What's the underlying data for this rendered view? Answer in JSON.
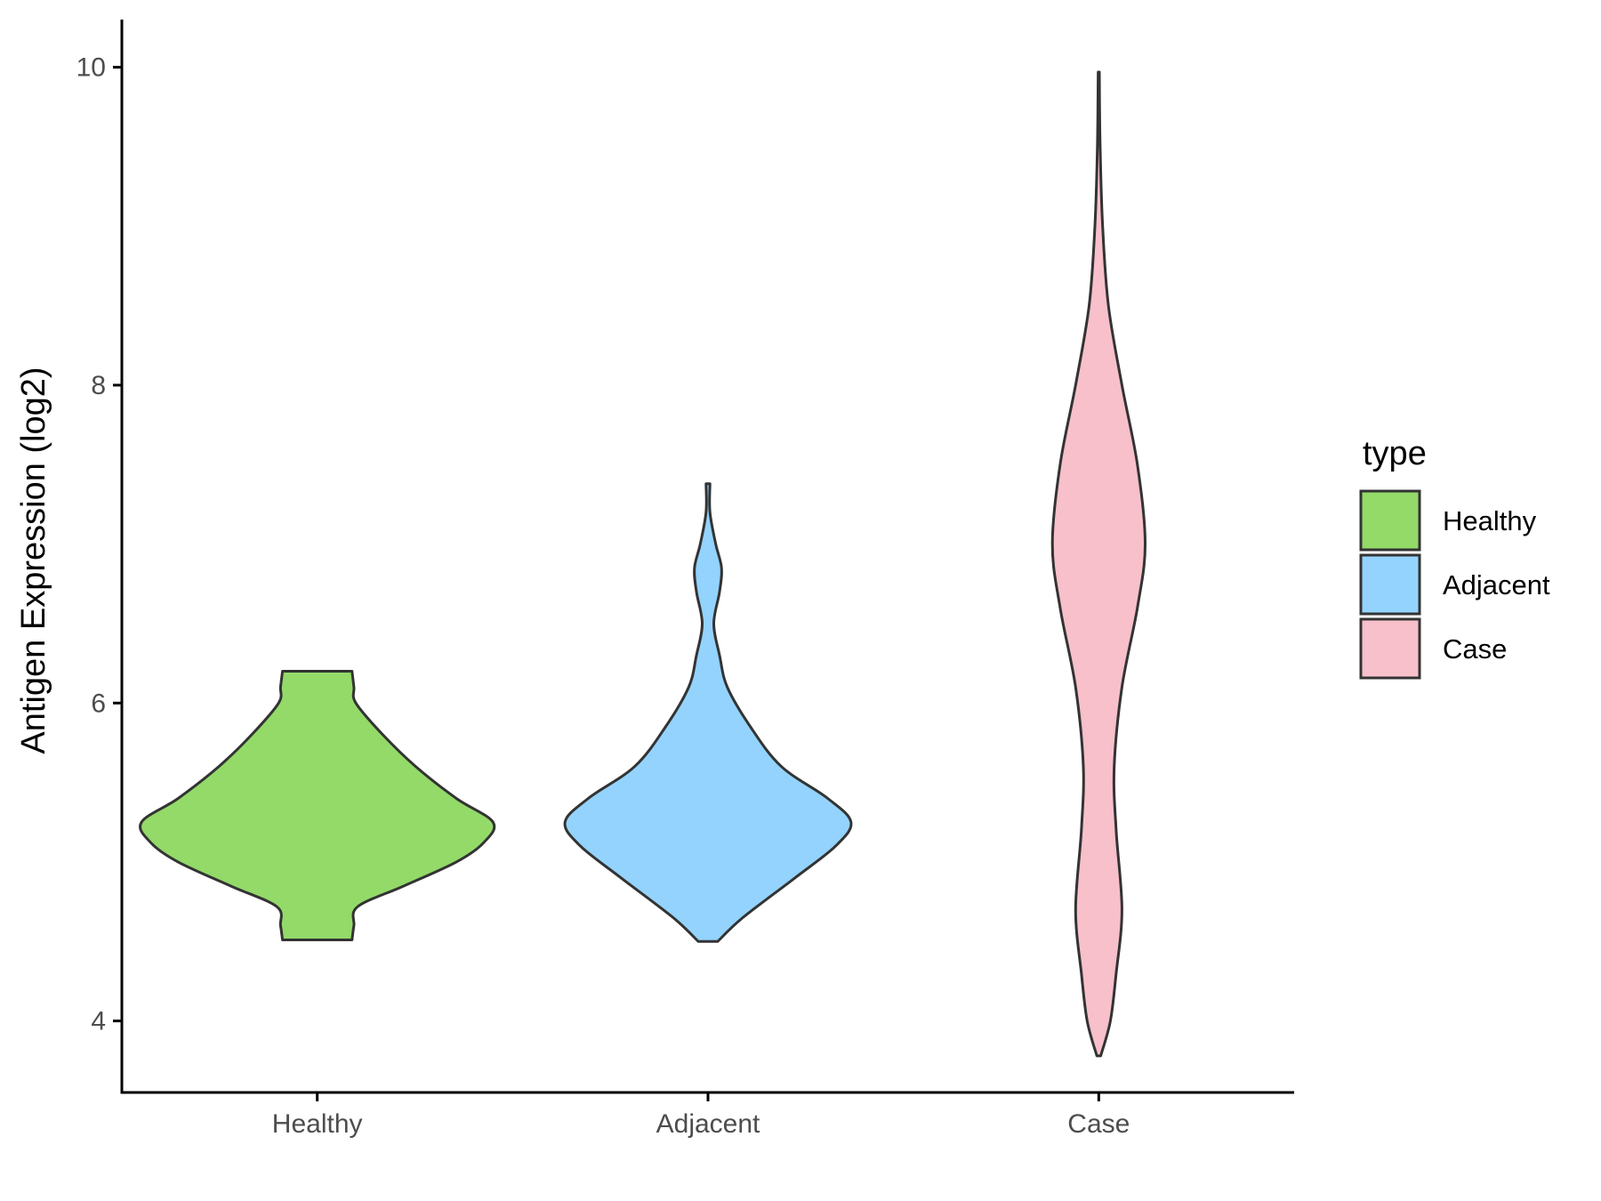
{
  "chart_data": {
    "type": "violin",
    "title": "",
    "xlabel": "",
    "ylabel": "Antigen Expression (log2)",
    "ylim": [
      3.55,
      10.3
    ],
    "yticks": [
      4,
      6,
      8,
      10
    ],
    "categories": [
      "Healthy",
      "Adjacent",
      "Case"
    ],
    "colors": {
      "Healthy": "#93da69",
      "Adjacent": "#93d3fe",
      "Case": "#f7c0cb"
    },
    "outline_color": "#333333",
    "series": [
      {
        "name": "Healthy",
        "range": [
          4.51,
          6.2
        ],
        "profile": [
          [
            4.51,
            0.18
          ],
          [
            4.6,
            0.19
          ],
          [
            4.72,
            0.21
          ],
          [
            4.85,
            0.45
          ],
          [
            5.0,
            0.72
          ],
          [
            5.12,
            0.86
          ],
          [
            5.25,
            0.91
          ],
          [
            5.4,
            0.72
          ],
          [
            5.6,
            0.51
          ],
          [
            5.8,
            0.34
          ],
          [
            6.0,
            0.2
          ],
          [
            6.1,
            0.19
          ],
          [
            6.2,
            0.18
          ]
        ]
      },
      {
        "name": "Adjacent",
        "range": [
          4.5,
          7.38
        ],
        "profile": [
          [
            4.5,
            0.05
          ],
          [
            4.65,
            0.18
          ],
          [
            4.9,
            0.45
          ],
          [
            5.1,
            0.66
          ],
          [
            5.25,
            0.74
          ],
          [
            5.4,
            0.62
          ],
          [
            5.6,
            0.38
          ],
          [
            5.85,
            0.22
          ],
          [
            6.1,
            0.1
          ],
          [
            6.3,
            0.06
          ],
          [
            6.5,
            0.03
          ],
          [
            6.7,
            0.06
          ],
          [
            6.85,
            0.07
          ],
          [
            7.0,
            0.04
          ],
          [
            7.2,
            0.01
          ],
          [
            7.38,
            0.01
          ]
        ]
      },
      {
        "name": "Case",
        "range": [
          3.78,
          9.97
        ],
        "profile": [
          [
            3.78,
            0.01
          ],
          [
            4.0,
            0.06
          ],
          [
            4.3,
            0.09
          ],
          [
            4.7,
            0.12
          ],
          [
            5.2,
            0.09
          ],
          [
            5.6,
            0.08
          ],
          [
            6.1,
            0.12
          ],
          [
            6.6,
            0.2
          ],
          [
            7.0,
            0.24
          ],
          [
            7.5,
            0.2
          ],
          [
            8.0,
            0.12
          ],
          [
            8.5,
            0.05
          ],
          [
            9.0,
            0.02
          ],
          [
            9.5,
            0.007
          ],
          [
            9.97,
            0.003
          ]
        ]
      }
    ],
    "legend": {
      "title": "type",
      "position": "right",
      "items": [
        "Healthy",
        "Adjacent",
        "Case"
      ]
    }
  }
}
